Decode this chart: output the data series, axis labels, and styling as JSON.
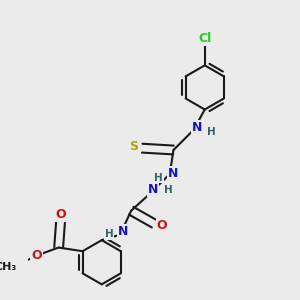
{
  "background_color": "#ebebeb",
  "bond_color": "#1a1a1a",
  "bond_width": 1.5,
  "figsize": [
    3.0,
    3.0
  ],
  "dpi": 100,
  "colors": {
    "C": "#1a1a1a",
    "N": "#1414cc",
    "O": "#cc1414",
    "S": "#aaaa00",
    "Cl": "#22cc22",
    "H": "#336666"
  },
  "font_size": 9,
  "font_size_small": 7.5
}
